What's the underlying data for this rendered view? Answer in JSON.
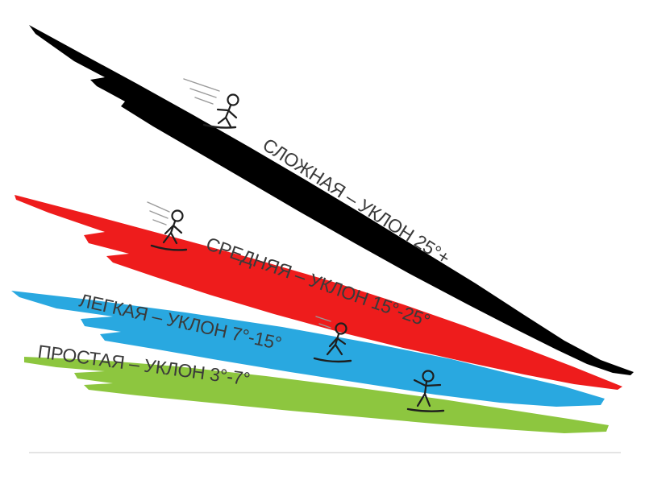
{
  "slopes": [
    {
      "id": "hard",
      "label": "СЛОЖНАЯ – УКЛОН 25°+",
      "color": "#000000",
      "icon": "snowboarder-speeding-icon"
    },
    {
      "id": "medium",
      "label": "СРЕДНЯЯ – УКЛОН 15°-25°",
      "color": "#ee1c1c",
      "icon": "snowboarder-riding-icon"
    },
    {
      "id": "easy",
      "label": "ЛЕГКАЯ – УКЛОН 7°-15°",
      "color": "#29a8e0",
      "icon": "snowboarder-riding-icon"
    },
    {
      "id": "simple",
      "label": "ПРОСТАЯ – УКЛОН 3°-7°",
      "color": "#8dc63f",
      "icon": "snowboarder-standing-icon"
    }
  ],
  "divider_color": "#c8c8c8"
}
